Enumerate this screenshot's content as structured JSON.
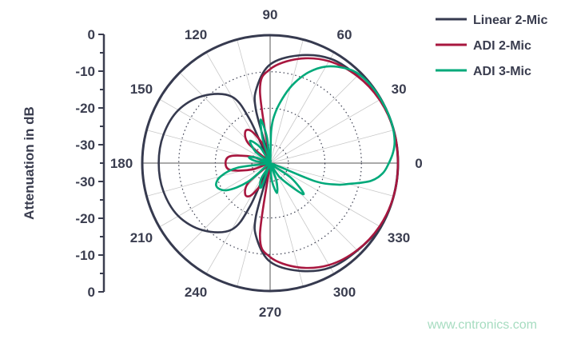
{
  "chart_data": {
    "type": "polar",
    "ylabel": "Attenuation in dB",
    "radial_range_db": [
      -35,
      0
    ],
    "radial_tick_labels": [
      "0",
      "-10",
      "-20",
      "-30",
      "-30",
      "-20",
      "-10",
      "0"
    ],
    "angle_tick_labels": [
      "0",
      "30",
      "60",
      "90",
      "120",
      "150",
      "180",
      "210",
      "240",
      "270",
      "300",
      "330"
    ],
    "grid": true,
    "legend_placement": "top-right",
    "series": [
      {
        "name": "Linear 2-Mic",
        "color": "#363a4f",
        "symmetric": true,
        "angles": [
          0,
          15,
          30,
          45,
          60,
          75,
          90,
          100,
          105,
          110,
          115,
          120,
          135,
          150,
          165,
          180
        ],
        "db": [
          0,
          0,
          -0.2,
          -1.2,
          -2,
          -4.5,
          -8,
          -14,
          -20,
          -35,
          -22,
          -14,
          -9,
          -6,
          -4.8,
          -4.5
        ]
      },
      {
        "name": "ADI 2-Mic",
        "color": "#a8173f",
        "symmetric": true,
        "angles": [
          0,
          15,
          30,
          45,
          60,
          75,
          90,
          98,
          103,
          110,
          120,
          128,
          138,
          150,
          160,
          170,
          180
        ],
        "db": [
          0,
          0,
          -0.4,
          -1.3,
          -2.8,
          -5.5,
          -9.3,
          -15,
          -35,
          -30,
          -25,
          -24,
          -27,
          -35,
          -30,
          -24,
          -22.8
        ]
      },
      {
        "name": "ADI 3-Mic",
        "color": "#00a97a",
        "symmetric": false,
        "angles": [
          0,
          5,
          10,
          17,
          25,
          35,
          45,
          52,
          60,
          67,
          73,
          78,
          84,
          88,
          92,
          97,
          102,
          107,
          112,
          122,
          132,
          142,
          150,
          158,
          165,
          172,
          180,
          188,
          195,
          203,
          212,
          220,
          228,
          240,
          250,
          258,
          265,
          276,
          283,
          290,
          297,
          305,
          317,
          325,
          333,
          338,
          342,
          345,
          350,
          355
        ],
        "db": [
          -2.5,
          -1.2,
          -0.4,
          0,
          0,
          -0.1,
          -0.6,
          -2,
          -4.5,
          -8,
          -12,
          -16,
          -21,
          -26,
          -35,
          -28,
          -22.8,
          -28,
          -35,
          -30,
          -26.8,
          -30,
          -35,
          -31,
          -29,
          -31,
          -35,
          -26,
          -21,
          -19,
          -21,
          -27,
          -35,
          -30,
          -28,
          -35,
          -35,
          -30,
          -26.6,
          -30,
          -35,
          -30,
          -22.5,
          -28,
          -35,
          -22,
          -16,
          -12.9,
          -7,
          -4
        ]
      }
    ]
  },
  "watermark": "www.cntronics.com"
}
